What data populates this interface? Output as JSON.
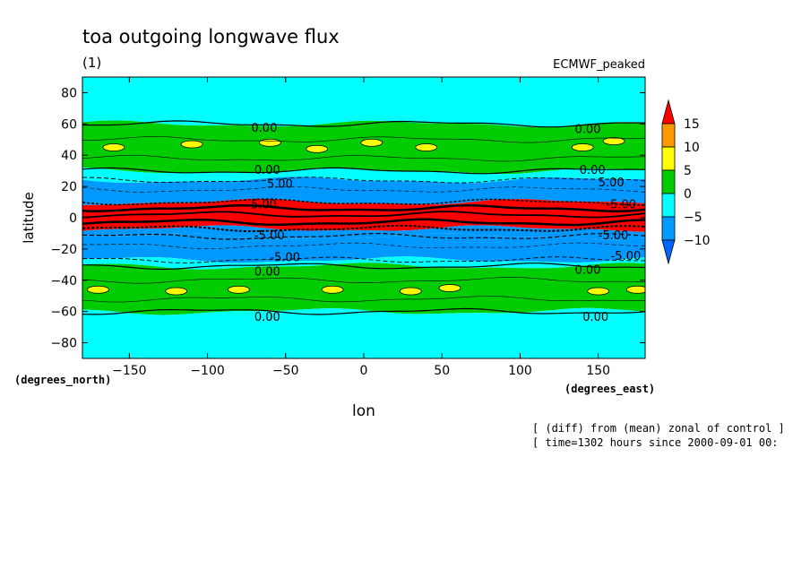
{
  "chart_data": {
    "type": "heatmap",
    "title": "toa outgoing longwave flux",
    "subtitle": "(1)",
    "experiment_label": "ECMWF_peaked",
    "xlabel": "lon",
    "ylabel": "latitude",
    "x_units": "(degrees_east)",
    "y_units": "(degrees_north)",
    "xlim": [
      -180,
      180
    ],
    "ylim": [
      -90,
      90
    ],
    "x_ticks": [
      -150,
      -100,
      -50,
      0,
      50,
      100,
      150
    ],
    "x_tick_labels": [
      "−150",
      "−100",
      "−50",
      "0",
      "50",
      "100",
      "150"
    ],
    "y_ticks": [
      80,
      60,
      40,
      20,
      0,
      -20,
      -40,
      -60,
      -80
    ],
    "y_tick_labels": [
      "80",
      "60",
      "40",
      "20",
      "0",
      "−20",
      "−40",
      "−60",
      "−80"
    ],
    "colorbar": {
      "levels": [
        15,
        10,
        5,
        0,
        -5,
        -10
      ],
      "level_labels": [
        "15",
        "10",
        "5",
        "0",
        "−5",
        "−10"
      ],
      "colors": [
        "#ff0000",
        "#ff9900",
        "#ffff00",
        "#00cc00",
        "#00ffff",
        "#0099ff",
        "#0066ff"
      ]
    },
    "bands": [
      {
        "lat_from": 90,
        "lat_to": 60,
        "color": "#00ffff"
      },
      {
        "lat_from": 60,
        "lat_to": 30,
        "color": "#00cc00"
      },
      {
        "lat_from": 30,
        "lat_to": 24,
        "color": "#00ffff"
      },
      {
        "lat_from": 24,
        "lat_to": 10,
        "color": "#0099ff"
      },
      {
        "lat_from": 10,
        "lat_to": -7,
        "color": "#ff0000"
      },
      {
        "lat_from": -7,
        "lat_to": -12,
        "color": "#0099ff"
      },
      {
        "lat_from": -12,
        "lat_to": -27,
        "color": "#0099ff"
      },
      {
        "lat_from": -27,
        "lat_to": -31,
        "color": "#00ffff"
      },
      {
        "lat_from": -31,
        "lat_to": -60,
        "color": "#00cc00"
      },
      {
        "lat_from": -60,
        "lat_to": -90,
        "color": "#00ffff"
      }
    ],
    "contour_labels": [
      {
        "text": "0.00",
        "lon": -72,
        "lat": 58
      },
      {
        "text": "0.00",
        "lon": 135,
        "lat": 57
      },
      {
        "text": "0.00",
        "lon": -70,
        "lat": 31
      },
      {
        "text": "0.00",
        "lon": 138,
        "lat": 31
      },
      {
        "text": "5.00",
        "lon": -62,
        "lat": 22
      },
      {
        "text": "5.00",
        "lon": 150,
        "lat": 23
      },
      {
        "text": "-5.00",
        "lon": -75,
        "lat": 9
      },
      {
        "text": "-5.00",
        "lon": 155,
        "lat": 9
      },
      {
        "text": "-5.00",
        "lon": -70,
        "lat": -11
      },
      {
        "text": "-5.00",
        "lon": 150,
        "lat": -11
      },
      {
        "text": "-5.00",
        "lon": -60,
        "lat": -25
      },
      {
        "text": "-5.00",
        "lon": 158,
        "lat": -24
      },
      {
        "text": "0.00",
        "lon": -70,
        "lat": -34
      },
      {
        "text": "0.00",
        "lon": 135,
        "lat": -33
      },
      {
        "text": "0.00",
        "lon": -70,
        "lat": -63
      },
      {
        "text": "0.00",
        "lon": 140,
        "lat": -63
      }
    ],
    "footnotes": [
      "[ (diff) from (mean) zonal of control ]",
      "[ time=1302 hours since 2000-09-01 00:"
    ]
  }
}
